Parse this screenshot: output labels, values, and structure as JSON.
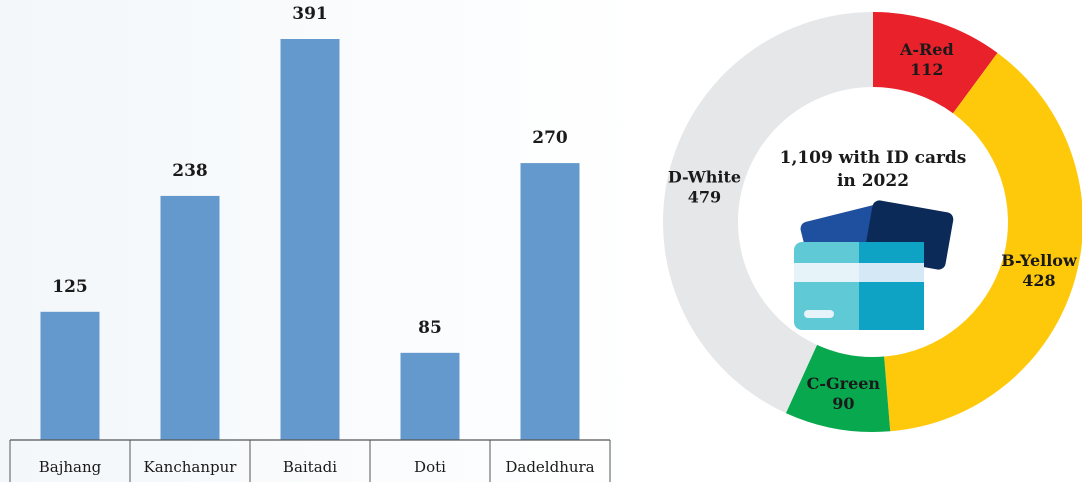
{
  "chart_data": [
    {
      "type": "bar",
      "categories": [
        "Bajhang",
        "Kanchanpur",
        "Baitadi",
        "Doti",
        "Dadeldhura"
      ],
      "values": [
        125,
        238,
        391,
        85,
        270
      ],
      "ylim": [
        0,
        391
      ],
      "grid": false,
      "colors": {
        "bar": "#6399cc",
        "axis": "#555555"
      }
    },
    {
      "type": "pie",
      "donut": true,
      "title_lines": [
        "1,109 with ID cards",
        "in 2022"
      ],
      "categories": [
        "A-Red",
        "B-Yellow",
        "C-Green",
        "D-White"
      ],
      "values": [
        112,
        428,
        90,
        479
      ],
      "colors": [
        "#e8212b",
        "#ffc90b",
        "#08a84e",
        "#e6e7e8"
      ],
      "label_colors": [
        "#1a1a1a",
        "#1a1a1a",
        "#1a1a1a",
        "#1a1a1a"
      ],
      "center_icon": "id-cards-icon"
    }
  ]
}
